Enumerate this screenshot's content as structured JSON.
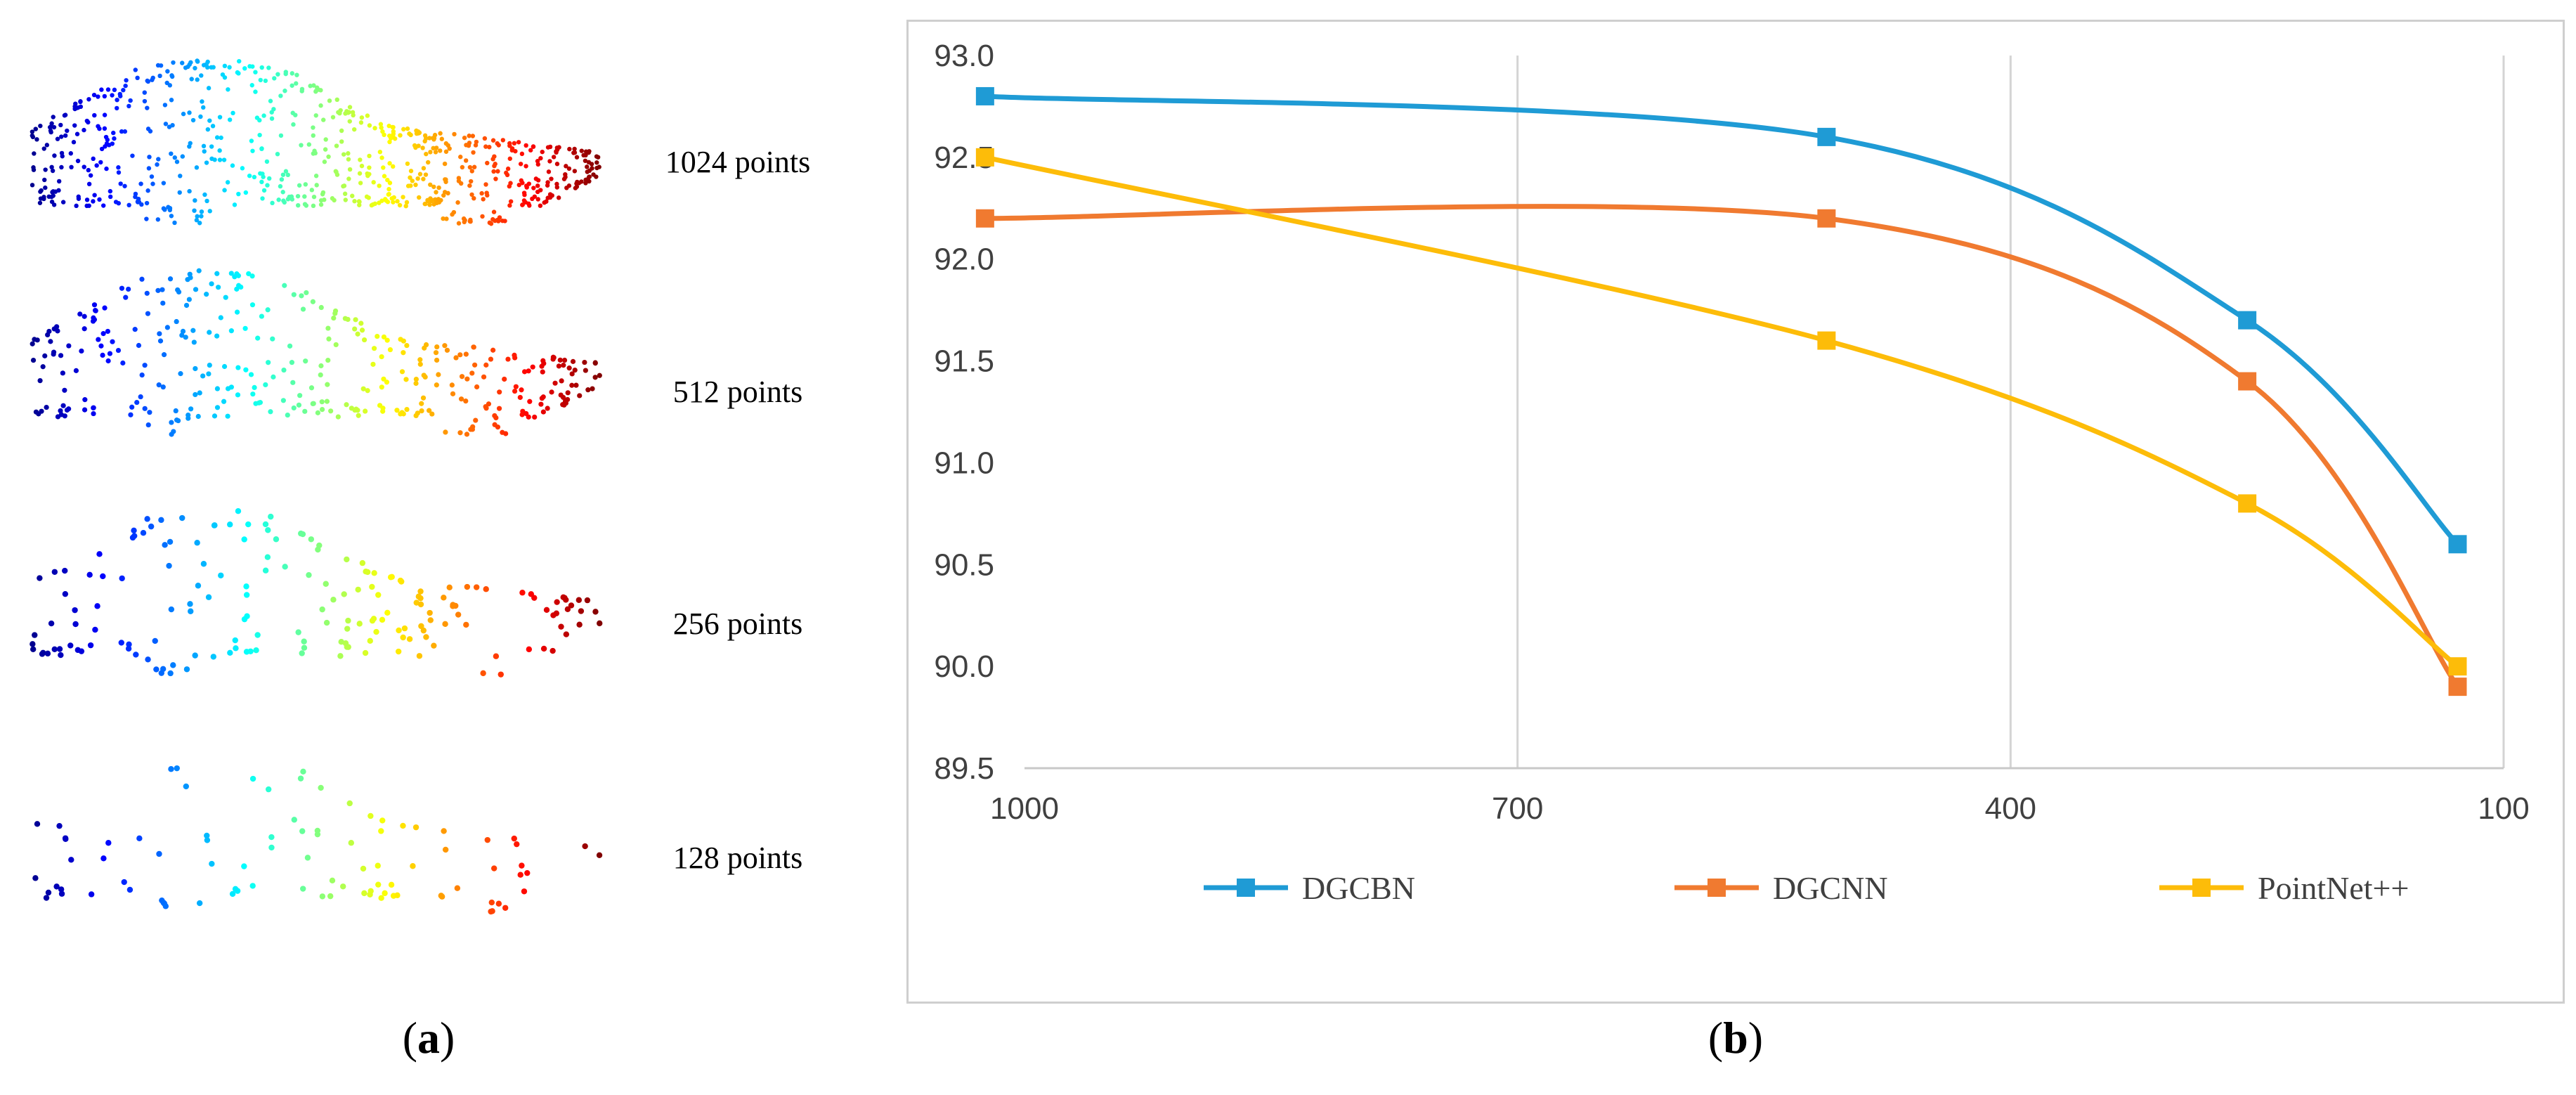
{
  "panel_a": {
    "samples": [
      {
        "label": "1024 points",
        "count": 1024
      },
      {
        "label": "512 points",
        "count": 512
      },
      {
        "label": "256 points",
        "count": 256
      },
      {
        "label": "128 points",
        "count": 128
      }
    ]
  },
  "captions": {
    "a_open": "(",
    "a_letter": "a",
    "a_close": ")",
    "b_open": "(",
    "b_letter": "b",
    "b_close": ")"
  },
  "chart_data": {
    "type": "line",
    "title": "",
    "xlabel": "",
    "ylabel": "",
    "x_reversed": true,
    "xlim": [
      1000,
      100
    ],
    "x_ticks": [
      1000,
      700,
      400,
      100
    ],
    "x_tick_labels": [
      "1000",
      "700",
      "400",
      "100"
    ],
    "ylim": [
      89.5,
      93.0
    ],
    "y_ticks": [
      89.5,
      90.0,
      90.5,
      91.0,
      91.5,
      92.0,
      92.5,
      93.0
    ],
    "y_tick_labels": [
      "89.5",
      "90.0",
      "90.5",
      "91.0",
      "91.5",
      "92.0",
      "92.5",
      "93.0"
    ],
    "grid": "vertical",
    "legend": "bottom",
    "x": [
      1024,
      512,
      256,
      128
    ],
    "series": [
      {
        "name": "DGCBN",
        "color": "#1f9bd5",
        "values": [
          92.8,
          92.6,
          91.7,
          90.6
        ]
      },
      {
        "name": "DGCNN",
        "color": "#f07a30",
        "values": [
          92.2,
          92.2,
          91.4,
          89.9
        ]
      },
      {
        "name": "PointNet++",
        "color": "#fdbc09",
        "values": [
          92.5,
          91.6,
          90.8,
          90.0
        ]
      }
    ]
  },
  "car_palette": [
    "#00008f",
    "#0000ff",
    "#0080ff",
    "#00ffff",
    "#80ff80",
    "#ffff00",
    "#ff8000",
    "#ff0000",
    "#800000"
  ]
}
